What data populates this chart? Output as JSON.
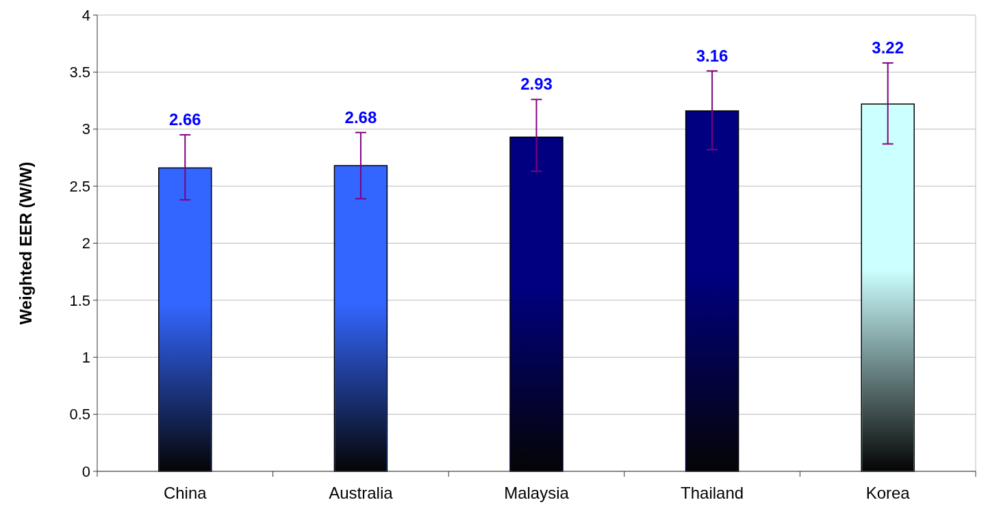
{
  "chart_data": {
    "type": "bar",
    "ylabel": "Weighted EER (W/W)",
    "categories": [
      "China",
      "Australia",
      "Malaysia",
      "Thailand",
      "Korea"
    ],
    "values": [
      2.66,
      2.68,
      2.93,
      3.16,
      3.22
    ],
    "colors": [
      "#3366ff",
      "#3366ff",
      "#000080",
      "#000080",
      "#ccffff"
    ],
    "errors": [
      [
        2.38,
        2.95
      ],
      [
        2.39,
        2.97
      ],
      [
        2.63,
        3.26
      ],
      [
        2.82,
        3.51
      ],
      [
        2.87,
        3.58
      ]
    ],
    "ylim": [
      0,
      4
    ],
    "yticks": [
      0,
      0.5,
      1,
      1.5,
      2,
      2.5,
      3,
      3.5,
      4
    ],
    "grid": "y",
    "data_labels": true
  }
}
